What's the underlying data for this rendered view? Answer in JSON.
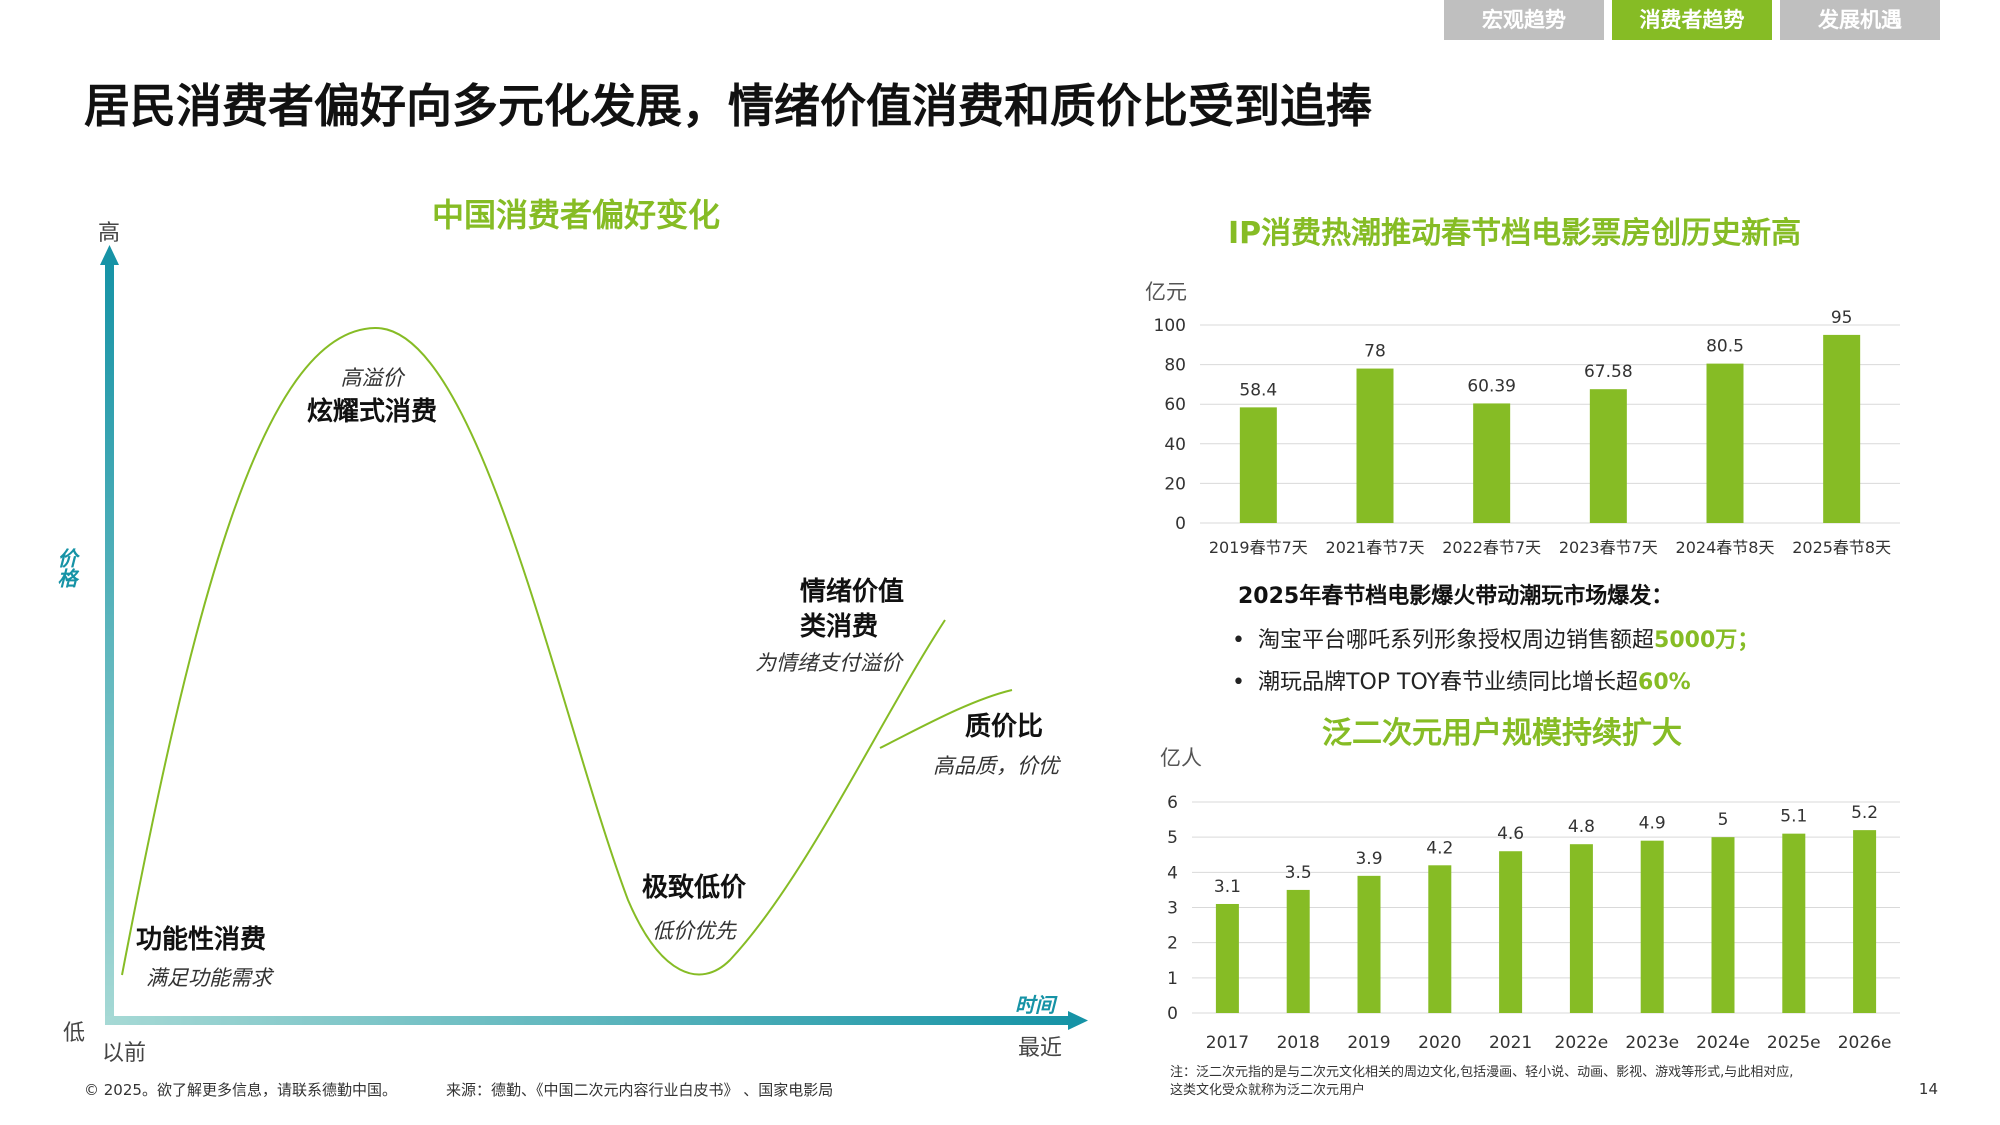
{
  "nav": {
    "tabs": [
      {
        "label": "宏观趋势",
        "active": false
      },
      {
        "label": "消费者趋势",
        "active": true
      },
      {
        "label": "发展机遇",
        "active": false
      }
    ]
  },
  "page_title": "居民消费者偏好向多元化发展，情绪价值消费和质价比受到追捧",
  "colors": {
    "accent": "#86bc25",
    "axis_teal": "#1b97a9",
    "gray_tab": "#bfbfbf"
  },
  "left": {
    "title": "中国消费者偏好变化",
    "y_high": "高",
    "y_low": "低",
    "y_label": "价格",
    "x_start": "以前",
    "x_end": "最近",
    "x_label": "时间",
    "stages": [
      {
        "title": "炫耀式消费",
        "sub": "高溢价"
      },
      {
        "title": "功能性消费",
        "sub": "满足功能需求"
      },
      {
        "title": "极致低价",
        "sub": "低价优先"
      },
      {
        "title_line1": "情绪价值",
        "title_line2": "类消费",
        "sub": "为情绪支付溢价"
      },
      {
        "title": "质价比",
        "sub": "高品质，价优"
      }
    ]
  },
  "box_office": {
    "title": "IP消费热潮推动春节档电影票房创历史新高",
    "unit": "亿元"
  },
  "highlights": {
    "title": "2025年春节档电影爆火带动潮玩市场爆发：",
    "items": [
      {
        "text": "淘宝平台哪吒系列形象授权周边销售额超",
        "highlight": "5000万；"
      },
      {
        "text": "潮玩品牌TOP TOY春节业绩同比增长超",
        "highlight": "60%"
      }
    ]
  },
  "users": {
    "title": "泛二次元用户规模持续扩大",
    "unit": "亿人"
  },
  "chart_data": [
    {
      "type": "bar",
      "title": "IP消费热潮推动春节档电影票房创历史新高",
      "ylabel": "亿元",
      "categories": [
        "2019春节7天",
        "2021春节7天",
        "2022春节7天",
        "2023春节7天",
        "2024春节8天",
        "2025春节8天"
      ],
      "values": [
        58.4,
        78,
        60.39,
        67.58,
        80.5,
        95
      ],
      "value_labels": [
        "58.4",
        "78",
        "60.39",
        "67.58",
        "80.5",
        "95"
      ],
      "ylim": [
        0,
        100
      ],
      "yticks": [
        0,
        20,
        40,
        60,
        80,
        100
      ],
      "grid": true,
      "color": "#86bc25"
    },
    {
      "type": "bar",
      "title": "泛二次元用户规模持续扩大",
      "ylabel": "亿人",
      "categories": [
        "2017",
        "2018",
        "2019",
        "2020",
        "2021",
        "2022e",
        "2023e",
        "2024e",
        "2025e",
        "2026e"
      ],
      "values": [
        3.1,
        3.5,
        3.9,
        4.2,
        4.6,
        4.8,
        4.9,
        5,
        5.1,
        5.2
      ],
      "value_labels": [
        "3.1",
        "3.5",
        "3.9",
        "4.2",
        "4.6",
        "4.8",
        "4.9",
        "5",
        "5.1",
        "5.2"
      ],
      "ylim": [
        0,
        6
      ],
      "yticks": [
        0,
        1,
        2,
        3,
        4,
        5,
        6
      ],
      "grid": true,
      "color": "#86bc25"
    }
  ],
  "footer": {
    "copyright": "© 2025。欲了解更多信息，请联系德勤中国。",
    "source": "来源：德勤、《中国二次元内容行业白皮书》 、国家电影局",
    "note_line1": "注：泛二次元指的是与二次元文化相关的周边文化,包括漫画、轻小说、动画、影视、游戏等形式,与此相对应,",
    "note_line2": "这类文化受众就称为泛二次元用户",
    "page": "14"
  }
}
